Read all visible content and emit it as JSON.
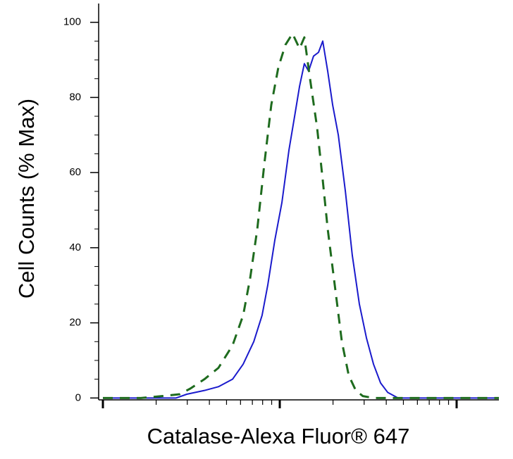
{
  "chart_data": {
    "type": "line",
    "xlabel": "Catalase-Alexa Fluor® 647",
    "ylabel": "Cell Counts (% Max)",
    "xscale": "log",
    "xlim": [
      -0.024,
      2.239
    ],
    "xticks": [
      0,
      1,
      2
    ],
    "ylim": [
      -0.5,
      105
    ],
    "yticks": [
      0,
      20,
      40,
      60,
      80,
      100
    ],
    "series": [
      {
        "color": "#1a1acc",
        "dash": false,
        "x": [
          0,
          0.414,
          0.474,
          0.574,
          0.653,
          0.733,
          0.793,
          0.853,
          0.9,
          0.932,
          0.972,
          1.012,
          1.052,
          1.084,
          1.112,
          1.139,
          1.163,
          1.191,
          1.219,
          1.243,
          1.271,
          1.299,
          1.331,
          1.371,
          1.41,
          1.45,
          1.49,
          1.53,
          1.57,
          1.61,
          1.669,
          2.239
        ],
        "values": [
          0,
          0,
          1,
          2,
          3,
          5,
          9,
          15,
          22,
          30,
          42,
          52,
          66,
          75,
          83,
          89,
          87,
          91,
          92,
          95,
          87,
          78,
          70,
          55,
          38,
          25,
          16,
          9,
          4,
          1.5,
          0,
          0
        ]
      },
      {
        "color": "#1e6b1e",
        "dash": true,
        "x": [
          0,
          0.215,
          0.335,
          0.434,
          0.494,
          0.574,
          0.653,
          0.733,
          0.793,
          0.833,
          0.873,
          0.912,
          0.952,
          0.992,
          1.032,
          1.072,
          1.112,
          1.139,
          1.171,
          1.211,
          1.243,
          1.271,
          1.311,
          1.351,
          1.39,
          1.43,
          1.47,
          1.53,
          2.239
        ],
        "values": [
          0,
          0,
          0.5,
          1,
          2.5,
          5,
          8,
          14,
          22,
          32,
          45,
          62,
          78,
          88,
          94,
          97,
          93,
          96,
          85,
          72,
          58,
          45,
          30,
          15,
          6,
          2,
          0.5,
          0,
          0
        ]
      }
    ]
  }
}
